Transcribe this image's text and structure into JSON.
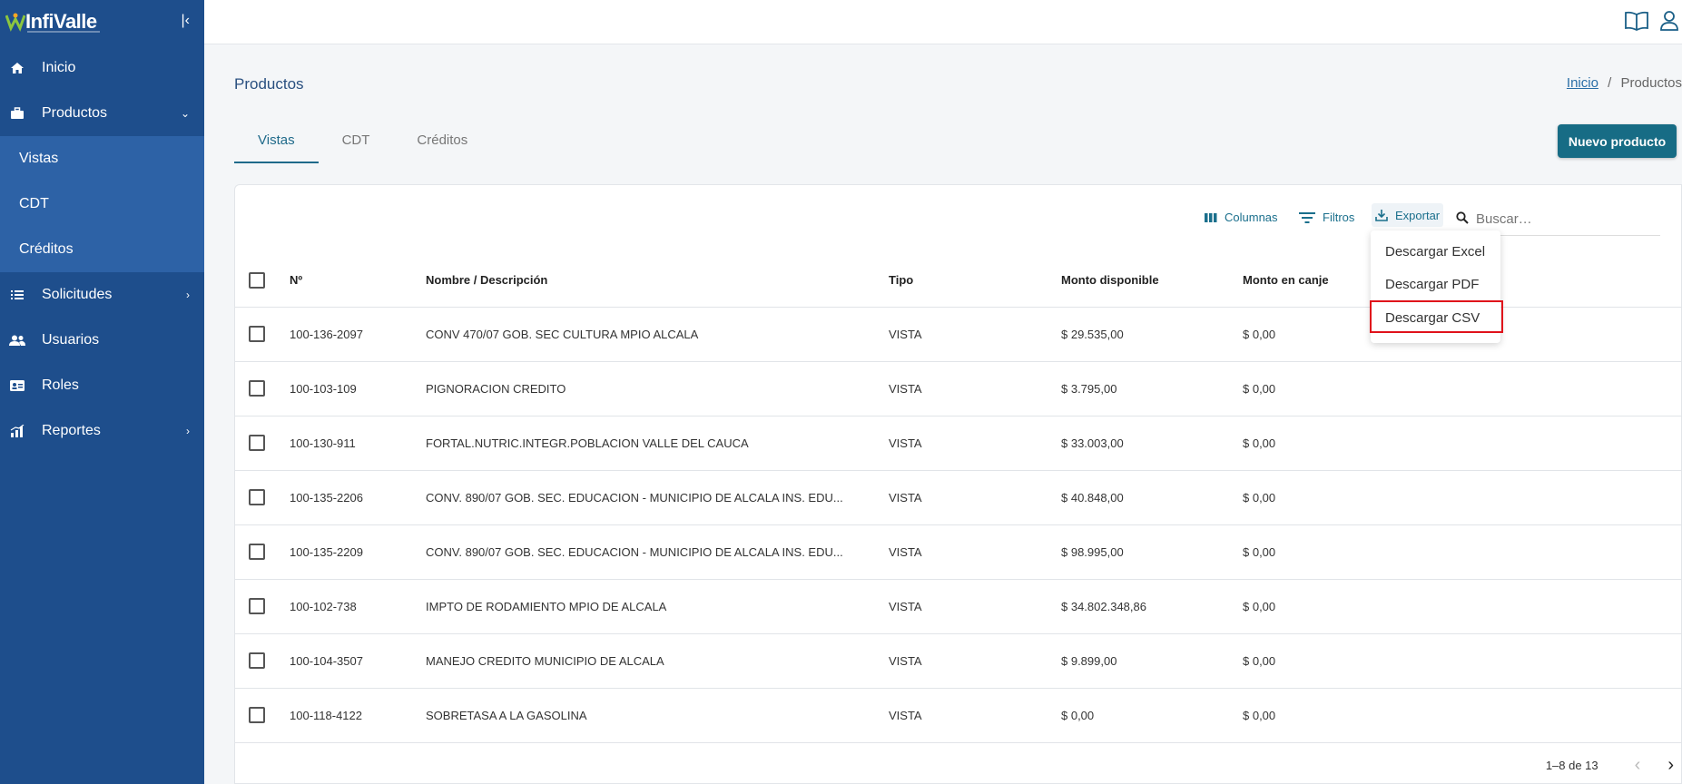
{
  "app": {
    "logo_text": "InfiValle"
  },
  "sidebar": {
    "items": [
      {
        "label": "Inicio",
        "icon": "home-icon"
      },
      {
        "label": "Productos",
        "icon": "briefcase-icon",
        "expanded": true,
        "children": [
          {
            "label": "Vistas"
          },
          {
            "label": "CDT"
          },
          {
            "label": "Créditos"
          }
        ]
      },
      {
        "label": "Solicitudes",
        "icon": "list-icon"
      },
      {
        "label": "Usuarios",
        "icon": "users-icon"
      },
      {
        "label": "Roles",
        "icon": "id-card-icon"
      },
      {
        "label": "Reportes",
        "icon": "chart-icon"
      }
    ]
  },
  "header": {
    "icons": [
      "book-icon",
      "user-icon"
    ]
  },
  "page": {
    "title": "Productos",
    "breadcrumb": {
      "home": "Inicio",
      "separator": "/",
      "current": "Productos"
    },
    "tabs": [
      {
        "label": "Vistas",
        "active": true
      },
      {
        "label": "CDT"
      },
      {
        "label": "Créditos"
      }
    ],
    "new_button": "Nuevo producto"
  },
  "toolbar": {
    "columns": "Columnas",
    "filters": "Filtros",
    "export": "Exportar",
    "search_placeholder": "Buscar…"
  },
  "export_menu": {
    "items": [
      "Descargar Excel",
      "Descargar PDF",
      "Descargar CSV"
    ],
    "highlighted": "Descargar CSV"
  },
  "table": {
    "headers": {
      "no": "Nº",
      "name": "Nombre / Descripción",
      "tipo": "Tipo",
      "monto": "Monto disponible",
      "canje": "Monto en canje"
    },
    "rows": [
      {
        "no": "100-136-2097",
        "name": "CONV 470/07 GOB. SEC CULTURA MPIO ALCALA",
        "tipo": "VISTA",
        "monto": "$ 29.535,00",
        "canje": "$ 0,00"
      },
      {
        "no": "100-103-109",
        "name": "PIGNORACION CREDITO",
        "tipo": "VISTA",
        "monto": "$ 3.795,00",
        "canje": "$ 0,00"
      },
      {
        "no": "100-130-911",
        "name": "FORTAL.NUTRIC.INTEGR.POBLACION VALLE DEL CAUCA",
        "tipo": "VISTA",
        "monto": "$ 33.003,00",
        "canje": "$ 0,00"
      },
      {
        "no": "100-135-2206",
        "name": "CONV. 890/07 GOB. SEC. EDUCACION - MUNICIPIO DE ALCALA INS. EDU...",
        "tipo": "VISTA",
        "monto": "$ 40.848,00",
        "canje": "$ 0,00"
      },
      {
        "no": "100-135-2209",
        "name": "CONV. 890/07 GOB. SEC. EDUCACION - MUNICIPIO DE ALCALA INS. EDU...",
        "tipo": "VISTA",
        "monto": "$ 98.995,00",
        "canje": "$ 0,00"
      },
      {
        "no": "100-102-738",
        "name": "IMPTO DE RODAMIENTO MPIO DE ALCALA",
        "tipo": "VISTA",
        "monto": "$ 34.802.348,86",
        "canje": "$ 0,00"
      },
      {
        "no": "100-104-3507",
        "name": "MANEJO CREDITO MUNICIPIO DE ALCALA",
        "tipo": "VISTA",
        "monto": "$ 9.899,00",
        "canje": "$ 0,00"
      },
      {
        "no": "100-118-4122",
        "name": "SOBRETASA A LA GASOLINA",
        "tipo": "VISTA",
        "monto": "$ 0,00",
        "canje": "$ 0,00"
      }
    ]
  },
  "pagination": {
    "range": "1–8 de 13"
  },
  "colors": {
    "sidebar": "#1e4e8c",
    "subnav": "#2d62a6",
    "accent": "#176c85",
    "highlight": "#e0121b"
  }
}
